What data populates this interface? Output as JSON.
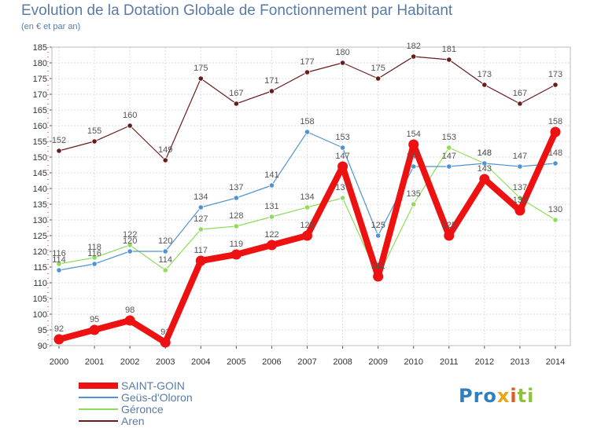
{
  "chart_data": {
    "type": "line",
    "title": "Evolution de la Dotation Globale de Fonctionnement par Habitant",
    "subtitle": "(en € et par an)",
    "xlabel": "",
    "ylabel": "",
    "categories": [
      "2000",
      "2001",
      "2002",
      "2003",
      "2004",
      "2005",
      "2006",
      "2007",
      "2008",
      "2009",
      "2010",
      "2011",
      "2012",
      "2013",
      "2014"
    ],
    "ylim": [
      90,
      185
    ],
    "yticks": [
      90,
      95,
      100,
      105,
      110,
      115,
      120,
      125,
      130,
      135,
      140,
      145,
      150,
      155,
      160,
      165,
      170,
      175,
      180,
      185
    ],
    "series": [
      {
        "name": "Aren",
        "color": "#6b1b1b",
        "width": 1.2,
        "values": [
          152,
          155,
          160,
          149,
          175,
          167,
          171,
          177,
          180,
          175,
          182,
          181,
          173,
          167,
          173
        ]
      },
      {
        "name": "Gerónce",
        "color": "#8fdc5a",
        "width": 1.2,
        "values": [
          116,
          118,
          122,
          114,
          127,
          128,
          131,
          134,
          137,
          112,
          135,
          153,
          148,
          137,
          130
        ]
      },
      {
        "name": "Geüs-d'Oloron",
        "color": "#4f93d1",
        "width": 1.2,
        "values": [
          114,
          116,
          120,
          120,
          134,
          137,
          141,
          158,
          153,
          125,
          147,
          147,
          148,
          147,
          148
        ]
      },
      {
        "name": "SAINT-GOIN",
        "color": "#ee1111",
        "width": 8,
        "values": [
          92,
          95,
          98,
          91,
          117,
          119,
          122,
          125,
          147,
          112,
          154,
          125,
          143,
          133,
          158
        ]
      }
    ]
  },
  "legend": {
    "items": [
      {
        "label": "SAINT-GOIN",
        "color": "#ee1111"
      },
      {
        "label": "Geüs-d'Oloron",
        "color": "#4f93d1"
      },
      {
        "label": "Géronce",
        "color": "#8fdc5a"
      },
      {
        "label": "Aren",
        "color": "#6b1b1b"
      }
    ]
  },
  "logo": {
    "p1": "Pro",
    "p2": "x",
    "p3": "i",
    "p4": "ti"
  }
}
